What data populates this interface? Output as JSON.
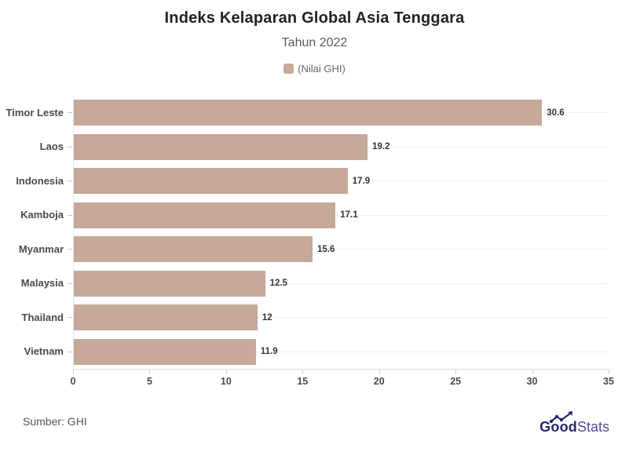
{
  "header": {
    "title": "Indeks Kelaparan Global Asia Tenggara",
    "subtitle": "Tahun 2022"
  },
  "legend": {
    "label": "(Nilai GHI)",
    "swatch_color": "#c6a999"
  },
  "chart_data": {
    "type": "bar",
    "orientation": "horizontal",
    "title": "Indeks Kelaparan Global Asia Tenggara",
    "subtitle": "Tahun 2022",
    "series_name": "(Nilai GHI)",
    "categories": [
      "Timor Leste",
      "Laos",
      "Indonesia",
      "Kamboja",
      "Myanmar",
      "Malaysia",
      "Thailand",
      "Vietnam"
    ],
    "values": [
      30.6,
      19.2,
      17.9,
      17.1,
      15.6,
      12.5,
      12,
      11.9
    ],
    "value_labels": [
      "30.6",
      "19.2",
      "17.9",
      "17.1",
      "15.6",
      "12.5",
      "12",
      "11.9"
    ],
    "xlabel": "",
    "ylabel": "",
    "xlim": [
      0,
      35
    ],
    "x_ticks": [
      0,
      5,
      10,
      15,
      20,
      25,
      30,
      35
    ],
    "bar_color": "#c6a999",
    "grid": "horizontal-row-lines",
    "legend_position": "top-center"
  },
  "footer": {
    "source": "Sumber: GHI",
    "brand": {
      "bold_part": "Good",
      "light_part": "Stats",
      "color": "#26266e"
    }
  }
}
